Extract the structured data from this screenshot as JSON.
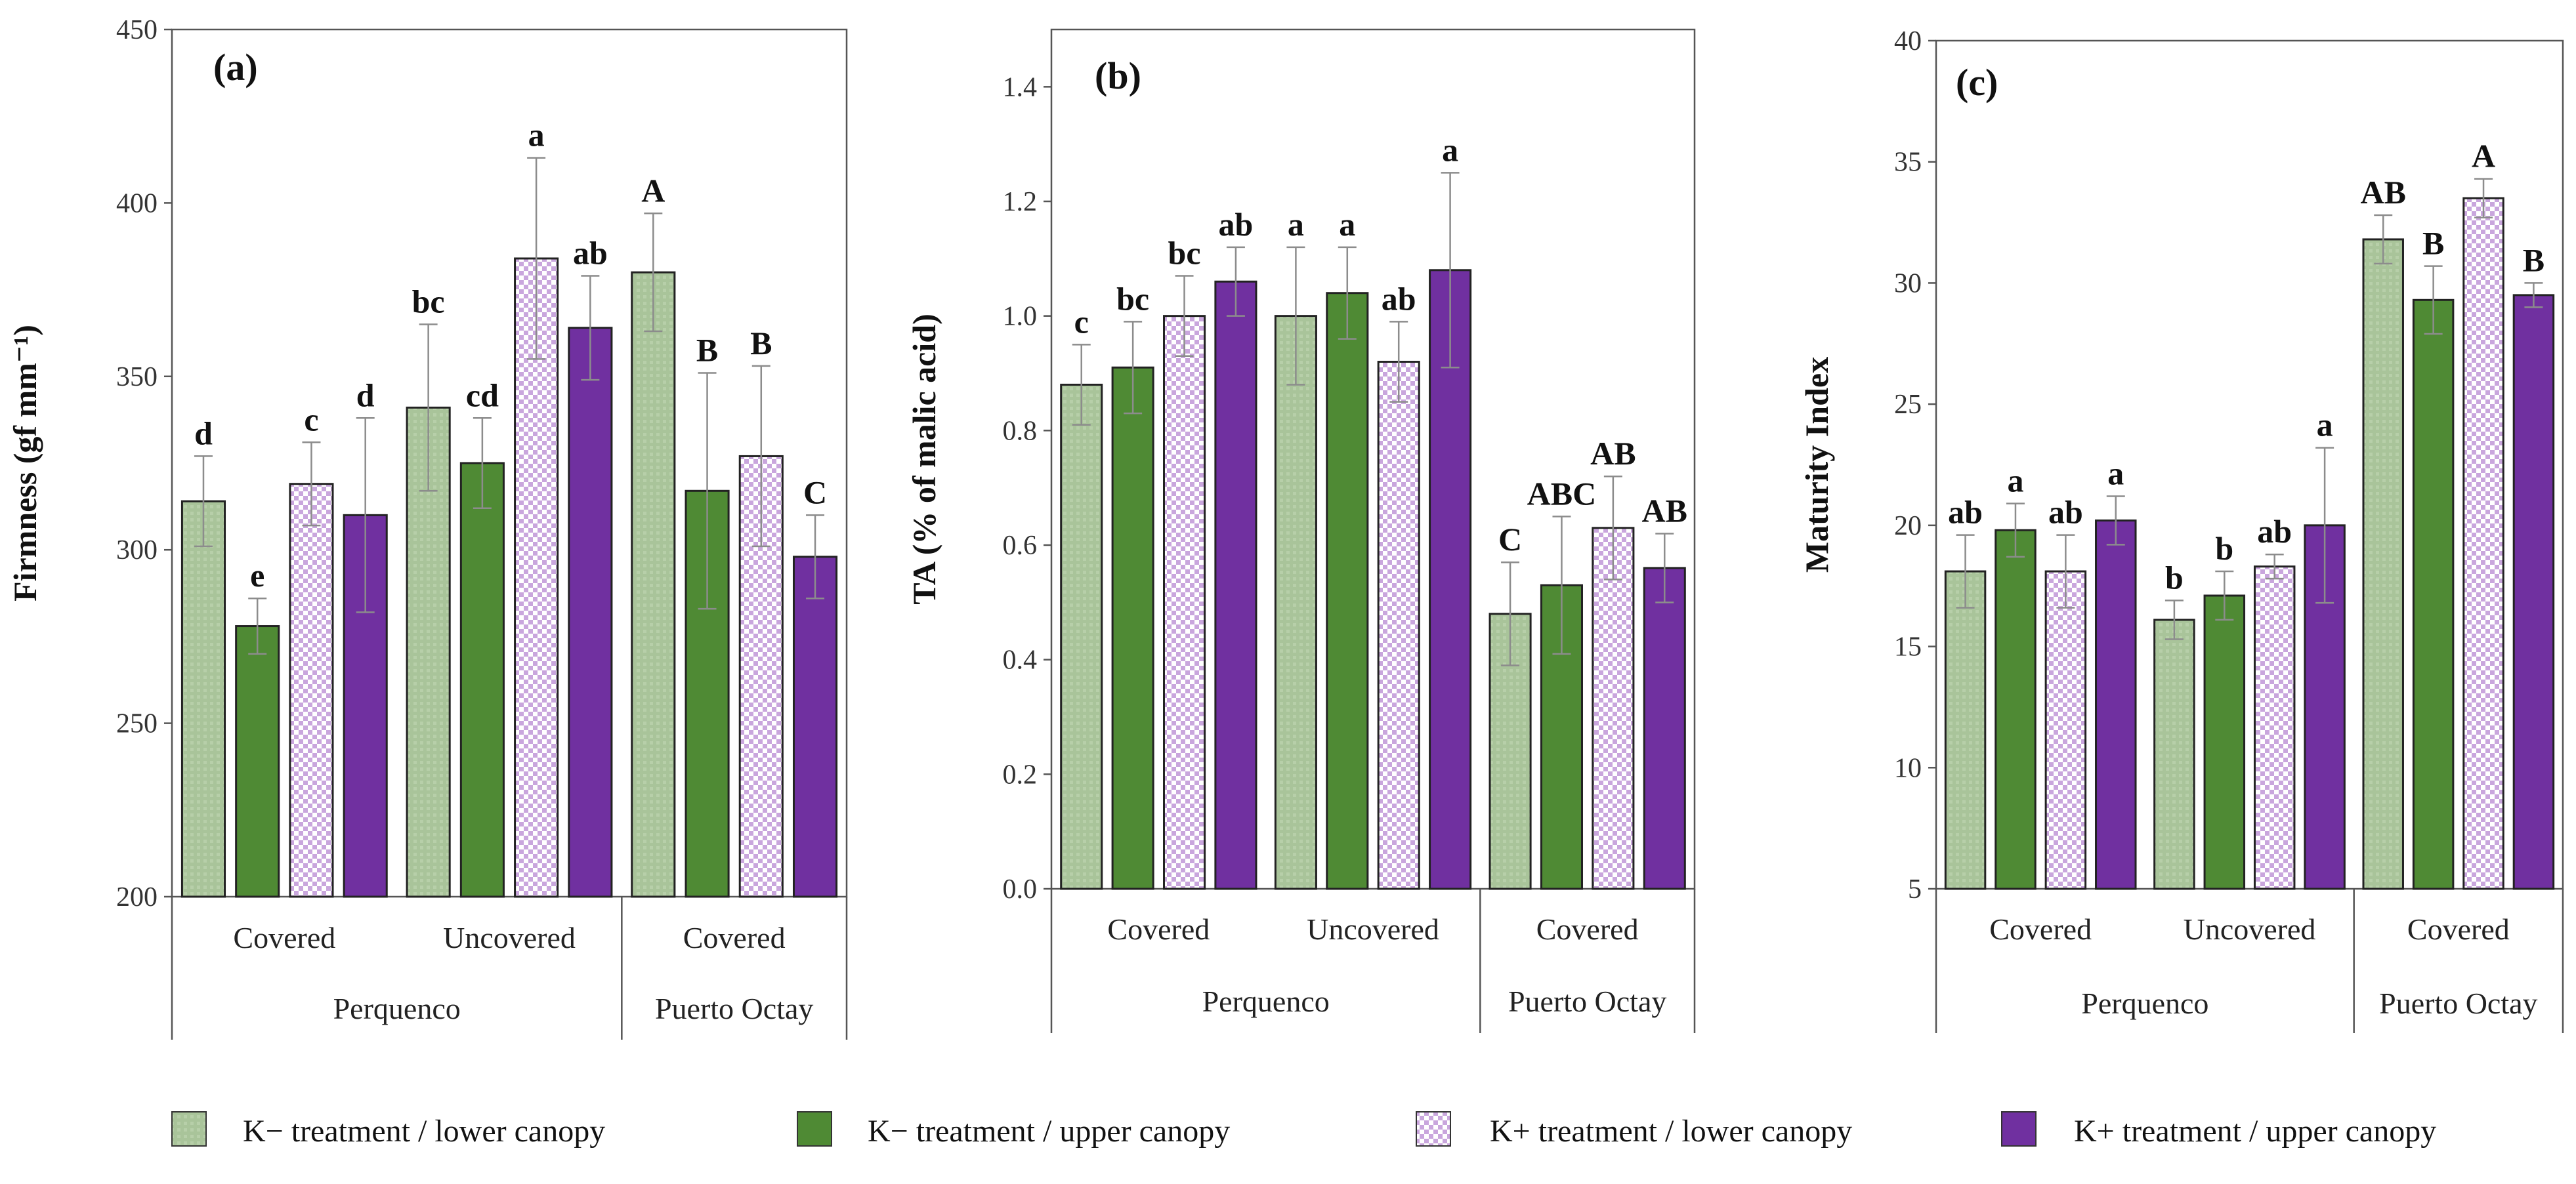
{
  "colors": {
    "k_minus_lower": "#a9c49a",
    "k_minus_upper": "#4f8a34",
    "k_plus_lower": "#d9c2e8",
    "k_plus_upper": "#7030a0",
    "axis": "#555555",
    "errorbar": "#8c8c8c"
  },
  "legend": [
    {
      "label": "K− treatment / lower canopy",
      "series": 0,
      "icon": "square-green-light"
    },
    {
      "label": "K− treatment / upper canopy",
      "series": 1,
      "icon": "square-green-dark"
    },
    {
      "label": "K+ treatment / lower canopy",
      "series": 2,
      "icon": "square-purple-checker"
    },
    {
      "label": "K+ treatment / upper canopy",
      "series": 3,
      "icon": "square-purple-dark"
    }
  ],
  "chart_data": [
    {
      "type": "bar",
      "panel_label": "(a)",
      "title": "",
      "ylabel": "Firmness (gf mm⁻¹)",
      "ylim": [
        200,
        450
      ],
      "yticks": [
        "200",
        "250",
        "300",
        "350",
        "400",
        "450"
      ],
      "ytick_values": [
        200,
        250,
        300,
        350,
        400,
        450
      ],
      "categories": [
        "Covered",
        "Uncovered",
        "Covered"
      ],
      "groups": [
        "Perquenco",
        "Puerto Octay"
      ],
      "group_spans": [
        [
          0,
          1
        ],
        [
          2,
          2
        ]
      ],
      "series": [
        {
          "name": "K− treatment / lower canopy",
          "values": [
            314,
            341,
            380
          ],
          "errors": [
            13,
            24,
            17
          ],
          "letters": [
            "d",
            "bc",
            "A"
          ]
        },
        {
          "name": "K− treatment / upper canopy",
          "values": [
            278,
            325,
            317
          ],
          "errors": [
            8,
            13,
            34
          ],
          "letters": [
            "e",
            "cd",
            "B"
          ]
        },
        {
          "name": "K+ treatment / lower canopy",
          "values": [
            319,
            384,
            327
          ],
          "errors": [
            12,
            29,
            26
          ],
          "letters": [
            "c",
            "a",
            "B"
          ]
        },
        {
          "name": "K+ treatment / upper canopy",
          "values": [
            310,
            364,
            298
          ],
          "errors": [
            28,
            15,
            12
          ],
          "letters": [
            "d",
            "ab",
            "C"
          ]
        }
      ]
    },
    {
      "type": "bar",
      "panel_label": "(b)",
      "title": "",
      "ylabel": "TA (% of malic acid)",
      "ylim": [
        0.0,
        1.5
      ],
      "yticks": [
        "0.0",
        "0.2",
        "0.4",
        "0.6",
        "0.8",
        "1.0",
        "1.2",
        "1.4"
      ],
      "ytick_values": [
        0.0,
        0.2,
        0.4,
        0.6,
        0.8,
        1.0,
        1.2,
        1.4
      ],
      "categories": [
        "Covered",
        "Uncovered",
        "Covered"
      ],
      "groups": [
        "Perquenco",
        "Puerto Octay"
      ],
      "group_spans": [
        [
          0,
          1
        ],
        [
          2,
          2
        ]
      ],
      "series": [
        {
          "name": "K− treatment / lower canopy",
          "values": [
            0.88,
            1.0,
            0.48
          ],
          "errors": [
            0.07,
            0.12,
            0.09
          ],
          "letters": [
            "c",
            "a",
            "C"
          ]
        },
        {
          "name": "K− treatment / upper canopy",
          "values": [
            0.91,
            1.04,
            0.53
          ],
          "errors": [
            0.08,
            0.08,
            0.12
          ],
          "letters": [
            "bc",
            "a",
            "ABC"
          ]
        },
        {
          "name": "K+ treatment / lower canopy",
          "values": [
            1.0,
            0.92,
            0.63
          ],
          "errors": [
            0.07,
            0.07,
            0.09
          ],
          "letters": [
            "bc",
            "ab",
            "AB"
          ]
        },
        {
          "name": "K+ treatment / upper canopy",
          "values": [
            1.06,
            1.08,
            0.56
          ],
          "errors": [
            0.06,
            0.17,
            0.06
          ],
          "letters": [
            "ab",
            "a",
            "AB"
          ]
        }
      ]
    },
    {
      "type": "bar",
      "panel_label": "(c)",
      "title": "",
      "ylabel": "Maturity Index",
      "ylim": [
        5,
        40
      ],
      "yticks": [
        "5",
        "10",
        "15",
        "20",
        "25",
        "30",
        "35",
        "40"
      ],
      "ytick_values": [
        5,
        10,
        15,
        20,
        25,
        30,
        35,
        40
      ],
      "categories": [
        "Covered",
        "Uncovered",
        "Covered"
      ],
      "groups": [
        "Perquenco",
        "Puerto Octay"
      ],
      "group_spans": [
        [
          0,
          1
        ],
        [
          2,
          2
        ]
      ],
      "series": [
        {
          "name": "K− treatment / lower canopy",
          "values": [
            18.1,
            16.1,
            31.8
          ],
          "errors": [
            1.5,
            0.8,
            1.0
          ],
          "letters": [
            "ab",
            "b",
            "AB"
          ]
        },
        {
          "name": "K− treatment / upper canopy",
          "values": [
            19.8,
            17.1,
            29.3
          ],
          "errors": [
            1.1,
            1.0,
            1.4
          ],
          "letters": [
            "a",
            "b",
            "B"
          ]
        },
        {
          "name": "K+ treatment / lower canopy",
          "values": [
            18.1,
            18.3,
            33.5
          ],
          "errors": [
            1.5,
            0.5,
            0.8
          ],
          "letters": [
            "ab",
            "ab",
            "A"
          ]
        },
        {
          "name": "K+ treatment / upper canopy",
          "values": [
            20.2,
            20.0,
            29.5
          ],
          "errors": [
            1.0,
            3.2,
            0.5
          ],
          "letters": [
            "a",
            "a",
            "B"
          ]
        }
      ]
    }
  ]
}
